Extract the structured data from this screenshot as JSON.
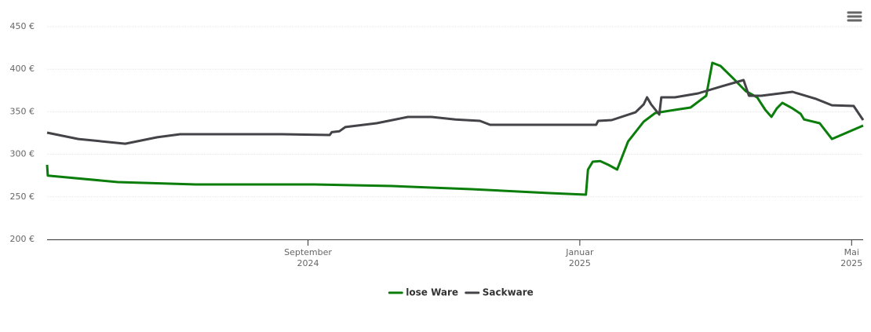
{
  "chart_data": {
    "type": "line",
    "xlim": [
      4.16,
      16.17
    ],
    "xticks": [
      {
        "value": 8,
        "label": "September 2024"
      },
      {
        "value": 12,
        "label": "Januar 2025"
      },
      {
        "value": 16,
        "label": "Mai 2025"
      }
    ],
    "ylim": [
      200,
      450
    ],
    "yticks": [
      {
        "value": 200,
        "label": "200 €"
      },
      {
        "value": 250,
        "label": "250 €"
      },
      {
        "value": 300,
        "label": "300 €"
      },
      {
        "value": 350,
        "label": "350 €"
      },
      {
        "value": 400,
        "label": "400 €"
      },
      {
        "value": 450,
        "label": "450 €"
      }
    ],
    "grid": true,
    "legend": "bottom",
    "series": [
      {
        "name": "lose Ware",
        "color": "#0a7d0a",
        "x": [
          4.16,
          4.17,
          5.2,
          6.35,
          8.09,
          9.24,
          10.4,
          11.55,
          12.09,
          12.12,
          12.19,
          12.3,
          12.42,
          12.55,
          12.71,
          12.94,
          13.11,
          13.4,
          13.63,
          13.86,
          13.95,
          14.07,
          14.26,
          14.44,
          14.61,
          14.73,
          14.82,
          14.9,
          14.98,
          15.13,
          15.25,
          15.3,
          15.53,
          15.71,
          16.17
        ],
        "values": [
          287.6,
          275,
          267.3,
          264.6,
          264.6,
          262.7,
          259,
          254.4,
          252.6,
          282,
          291.3,
          292,
          287.6,
          282,
          315,
          338.4,
          348.5,
          352.2,
          355,
          368.8,
          407.6,
          403.9,
          389,
          374.4,
          367,
          352.2,
          344,
          354,
          360.5,
          354,
          347.6,
          341,
          336.5,
          318,
          333.8
        ]
      },
      {
        "name": "Sackware",
        "color": "#434348",
        "x": [
          4.16,
          4.62,
          5.31,
          5.78,
          6.12,
          6.93,
          7.62,
          8.32,
          8.35,
          8.46,
          8.55,
          9.01,
          9.47,
          9.82,
          10.17,
          10.53,
          10.68,
          11.55,
          12.24,
          12.27,
          12.47,
          12.82,
          12.94,
          12.99,
          13.05,
          13.17,
          13.2,
          13.4,
          13.74,
          14.09,
          14.41,
          14.49,
          14.67,
          15.13,
          15.48,
          15.71,
          16.03,
          16.17
        ],
        "values": [
          325.5,
          318,
          312.5,
          320,
          323.6,
          323.6,
          323.6,
          322.7,
          326,
          327,
          332,
          336.5,
          343.9,
          343.9,
          341,
          339.3,
          334.7,
          334.7,
          334.7,
          339.3,
          340.2,
          349.4,
          358.7,
          367,
          358.7,
          346.7,
          367,
          367,
          371.6,
          380,
          387.3,
          368.8,
          368.8,
          373.4,
          365,
          357.7,
          356.8,
          340.2
        ]
      }
    ]
  }
}
